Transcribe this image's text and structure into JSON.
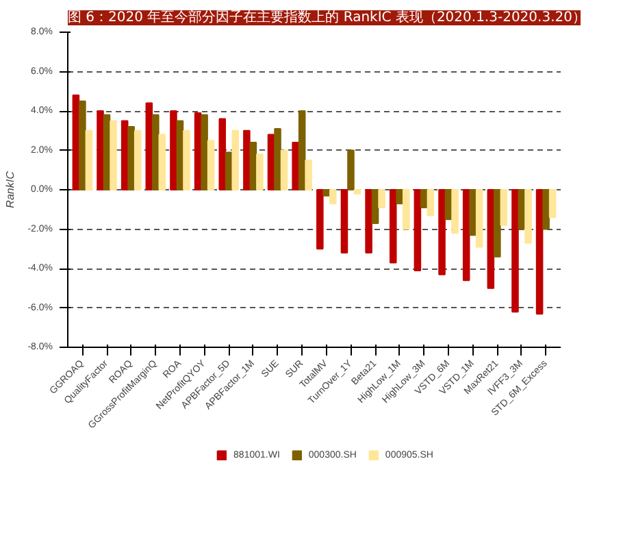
{
  "chart_data": {
    "type": "bar",
    "title": "图 6：2020 年至今部分因子在主要指数上的 RankIC 表现（2020.1.3-2020.3.20）",
    "ylabel": "RankIC",
    "categories": [
      "GGROAQ",
      "QualityFactor",
      "ROAQ",
      "GGrossProfitMarginQ",
      "ROA",
      "NetProfitQYOY",
      "APBFactor_5D",
      "APBFactor_1M",
      "SUE",
      "SUR",
      "TotalMV",
      "TurnOver_1Y",
      "Beta21",
      "HighLow_1M",
      "HighLow_3M",
      "VSTD_6M",
      "VSTD_1M",
      "MaxRet21",
      "IVFF3_3M",
      "STD_6M_Excess"
    ],
    "series": [
      {
        "name": "881001.WI",
        "color": "#c00000",
        "values": [
          4.8,
          4.0,
          3.5,
          4.4,
          4.0,
          3.9,
          3.6,
          3.0,
          2.8,
          2.4,
          -3.0,
          -3.2,
          -3.2,
          -3.7,
          -4.1,
          -4.3,
          -4.6,
          -5.0,
          -6.2,
          -6.3
        ]
      },
      {
        "name": "000300.SH",
        "color": "#7f6000",
        "values": [
          4.5,
          3.8,
          3.2,
          3.8,
          3.5,
          3.8,
          1.9,
          2.4,
          3.1,
          4.0,
          -0.3,
          2.0,
          -1.7,
          -0.7,
          -0.9,
          -1.5,
          -2.3,
          -3.4,
          -2.0,
          -2.0
        ]
      },
      {
        "name": "000905.SH",
        "color": "#ffe699",
        "values": [
          3.0,
          3.5,
          3.0,
          2.8,
          3.0,
          2.5,
          3.0,
          1.8,
          2.0,
          1.5,
          -0.7,
          -0.2,
          -0.9,
          -2.0,
          -1.3,
          -2.2,
          -2.9,
          -1.8,
          -2.7,
          -1.4
        ]
      }
    ],
    "ylim": [
      -8,
      8
    ],
    "yticks": [
      {
        "value": -8,
        "label": "-8.0%"
      },
      {
        "value": -6,
        "label": "-6.0%"
      },
      {
        "value": -4,
        "label": "-4.0%"
      },
      {
        "value": -2,
        "label": "-2.0%"
      },
      {
        "value": 0,
        "label": "0.0%"
      },
      {
        "value": 2,
        "label": "2.0%"
      },
      {
        "value": 4,
        "label": "4.0%"
      },
      {
        "value": 6,
        "label": "6.0%"
      },
      {
        "value": 8,
        "label": "8.0%"
      }
    ],
    "grid": "y",
    "legend": "bottom"
  }
}
